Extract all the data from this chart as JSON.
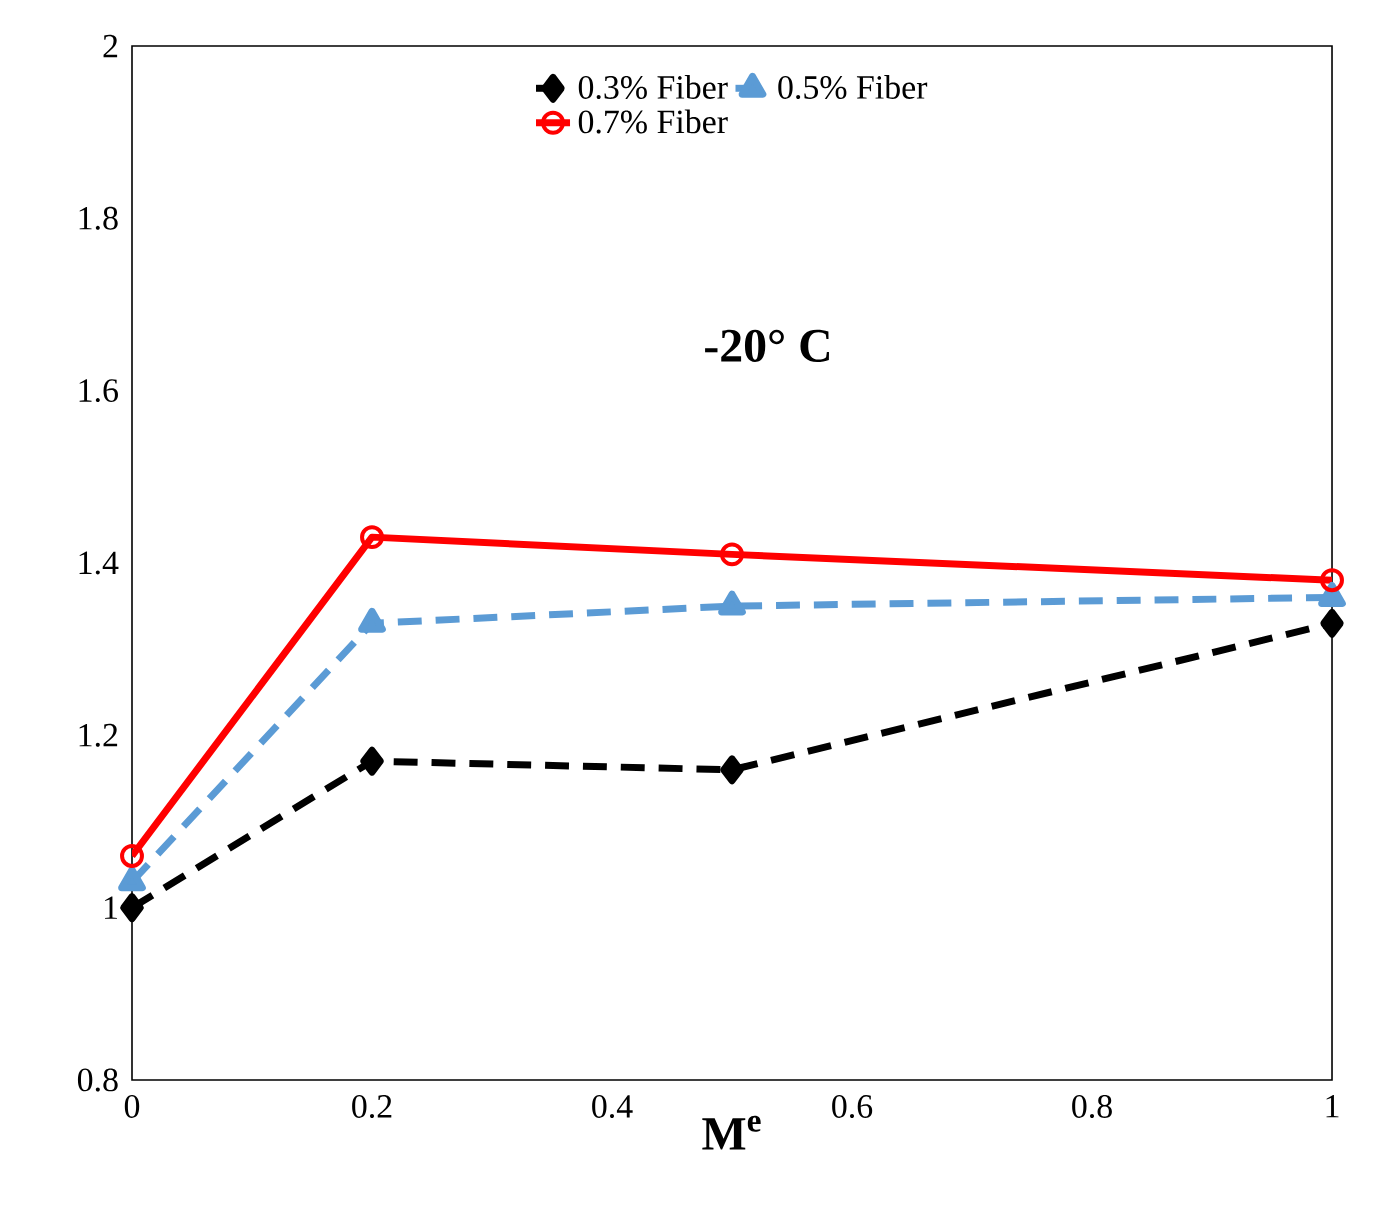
{
  "chart_data": {
    "type": "line",
    "xlabel": "M$^{e}$",
    "annotations": [
      "-20° C"
    ],
    "x": [
      0,
      0.2,
      0.5,
      1
    ],
    "series": [
      {
        "name": "0.3% Fiber",
        "color": "#000000",
        "values": [
          1.0,
          1.17,
          1.16,
          1.33
        ],
        "marker": "diamond",
        "line_style": "dashed"
      },
      {
        "name": "0.5% Fiber",
        "color": "#5b9bd5",
        "values": [
          1.03,
          1.33,
          1.35,
          1.36
        ],
        "marker": "triangle",
        "line_style": "dashed"
      },
      {
        "name": "0.7% Fiber",
        "color": "#ff0000",
        "values": [
          1.06,
          1.43,
          1.41,
          1.38
        ],
        "marker": "circle",
        "line_style": "solid"
      }
    ],
    "xlim": [
      0,
      1
    ],
    "ylim": [
      0.8,
      2
    ],
    "xticks": [
      0,
      0.2,
      0.4,
      0.6,
      0.8,
      1
    ],
    "yticks": [
      0.8,
      1,
      1.2,
      1.4,
      1.6,
      1.8,
      2
    ],
    "grid": false,
    "legend": "top"
  }
}
